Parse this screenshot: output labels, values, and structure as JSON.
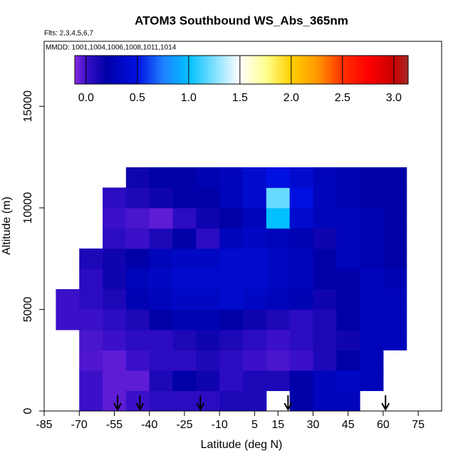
{
  "chart_data": {
    "type": "heatmap",
    "title": "ATOM3 Southbound WS_Abs_365nm",
    "subtitle": "Flts: 2,3,4,5,6,7",
    "annotation": "MMDD: 1001,1004,1006,1008,1011,1014",
    "x_label": "Latitude (deg N)",
    "y_label": "Altitude (m)",
    "xlim": [
      -85,
      85
    ],
    "ylim": [
      0,
      18200
    ],
    "xticks": [
      -85,
      -70,
      -55,
      -40,
      -25,
      -10,
      5,
      15,
      30,
      45,
      60,
      75
    ],
    "yticks": [
      0,
      5000,
      10000,
      15000
    ],
    "x": [
      -80,
      -70,
      -60,
      -50,
      -40,
      -30,
      -20,
      -10,
      0,
      10,
      20,
      30,
      40,
      50,
      60,
      70
    ],
    "y": [
      0,
      1000,
      2000,
      3000,
      4000,
      5000,
      6000,
      7000,
      8000,
      9000,
      10000,
      11000,
      12000
    ],
    "z": [
      [
        null,
        0.0,
        -0.05,
        0.0,
        0.05,
        0.05,
        0.05,
        0.1,
        0.1,
        null,
        0.2,
        0.3,
        0.3,
        null,
        null
      ],
      [
        null,
        0.0,
        -0.05,
        -0.05,
        0.1,
        0.2,
        0.15,
        0.05,
        0.1,
        0.1,
        0.2,
        0.3,
        0.35,
        0.3,
        null
      ],
      [
        null,
        -0.03,
        -0.05,
        0.0,
        0.05,
        0.05,
        0.1,
        0.05,
        0.0,
        -0.02,
        0.0,
        0.1,
        0.2,
        0.3,
        null
      ],
      [
        null,
        -0.02,
        0.0,
        0.05,
        0.05,
        0.1,
        0.15,
        0.1,
        0.05,
        0.0,
        0.05,
        0.1,
        0.15,
        0.3,
        0.3
      ],
      [
        0.0,
        0.0,
        0.05,
        0.1,
        0.2,
        0.25,
        0.25,
        0.2,
        0.15,
        0.1,
        0.05,
        0.1,
        0.2,
        0.3,
        0.3
      ],
      [
        0.0,
        0.05,
        0.1,
        0.25,
        0.3,
        0.35,
        0.35,
        0.4,
        0.35,
        0.3,
        0.25,
        0.15,
        0.2,
        0.3,
        0.3
      ],
      [
        null,
        0.05,
        0.15,
        0.3,
        0.35,
        0.4,
        0.4,
        0.4,
        0.4,
        0.35,
        0.3,
        0.2,
        0.2,
        0.3,
        0.25
      ],
      [
        null,
        0.1,
        0.15,
        0.2,
        0.3,
        0.35,
        0.35,
        0.4,
        0.4,
        0.35,
        0.3,
        0.2,
        0.3,
        0.25,
        0.2
      ],
      [
        null,
        null,
        0.05,
        0.0,
        0.1,
        0.2,
        0.05,
        0.3,
        0.35,
        0.3,
        0.25,
        0.15,
        0.3,
        0.25,
        0.2
      ],
      [
        null,
        null,
        0.0,
        -0.02,
        -0.05,
        0.05,
        0.15,
        0.2,
        0.3,
        1.0,
        0.4,
        0.3,
        0.3,
        0.25,
        0.2
      ],
      [
        null,
        null,
        0.05,
        0.1,
        0.15,
        0.2,
        0.2,
        0.3,
        0.4,
        1.2,
        0.5,
        0.3,
        0.25,
        0.2,
        0.2
      ],
      [
        null,
        null,
        null,
        0.15,
        0.2,
        0.2,
        0.25,
        0.3,
        0.4,
        0.5,
        0.4,
        0.3,
        0.25,
        0.2,
        0.2
      ]
    ],
    "colorbar_lim": [
      -0.11,
      3.14
    ],
    "colorbar_ticks": [
      {
        "value": 0,
        "label": "0.0"
      },
      0.5,
      {
        "value": 1,
        "label": "1.0"
      },
      1.5,
      {
        "value": 2,
        "label": "2.0"
      },
      2.5,
      {
        "value": 3,
        "label": "3.0"
      }
    ],
    "colorscale": [
      [
        -0.11,
        "#8a2be2"
      ],
      [
        0.0,
        "#3a10c8"
      ],
      [
        0.2,
        "#0000a8"
      ],
      [
        0.5,
        "#0010e0"
      ],
      [
        0.75,
        "#1e80ff"
      ],
      [
        1.0,
        "#00c0ff"
      ],
      [
        1.5,
        "#ffffff"
      ],
      [
        1.75,
        "#ffff90"
      ],
      [
        2.0,
        "#ffd000"
      ],
      [
        2.25,
        "#ff9800"
      ],
      [
        2.5,
        "#ff3000"
      ],
      [
        2.75,
        "#ff0000"
      ],
      [
        3.0,
        "#c80000"
      ],
      [
        3.14,
        "#a52a2a"
      ]
    ],
    "arrows": [
      -53.6,
      -44.1,
      -18.2,
      19.3,
      61.0
    ]
  }
}
